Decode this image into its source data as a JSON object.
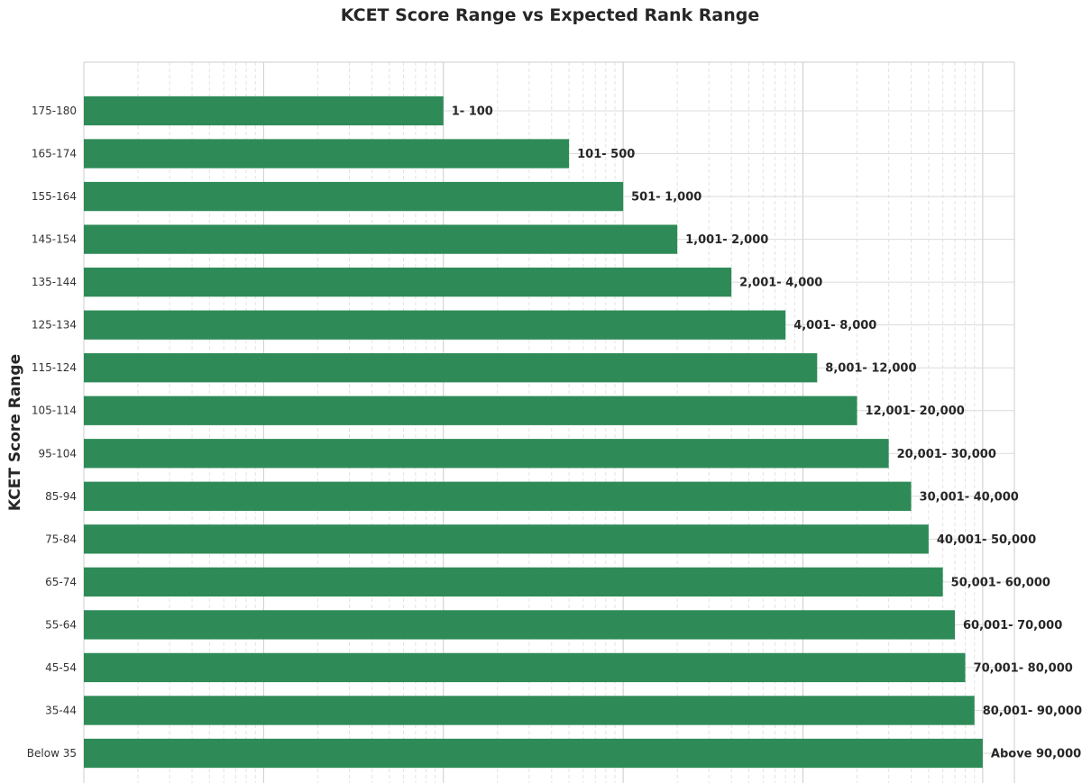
{
  "chart_data": {
    "type": "bar",
    "orientation": "horizontal",
    "title": "KCET Score Range vs Expected Rank Range",
    "ylabel": "KCET Score Range",
    "xlabel": "",
    "x_scale": "log",
    "xlim": [
      1,
      150000
    ],
    "grid": true,
    "bar_color": "#2e8b57",
    "categories": [
      "175-180",
      "165-174",
      "155-164",
      "145-154",
      "135-144",
      "125-134",
      "115-124",
      "105-114",
      "95-104",
      "85-94",
      "75-84",
      "65-74",
      "55-64",
      "45-54",
      "35-44",
      "Below 35"
    ],
    "values": [
      100,
      500,
      1000,
      2000,
      4000,
      8000,
      12000,
      20000,
      30000,
      40000,
      50000,
      60000,
      70000,
      80000,
      90000,
      100000
    ],
    "data_labels": [
      "1- 100",
      "101- 500",
      "501- 1,000",
      "1,001- 2,000",
      "2,001- 4,000",
      "4,001- 8,000",
      "8,001- 12,000",
      "12,001- 20,000",
      "20,001- 30,000",
      "30,001- 40,000",
      "40,001- 50,000",
      "50,001- 60,000",
      "60,001- 70,000",
      "70,001- 80,000",
      "80,001- 90,000",
      "Above 90,000"
    ]
  }
}
